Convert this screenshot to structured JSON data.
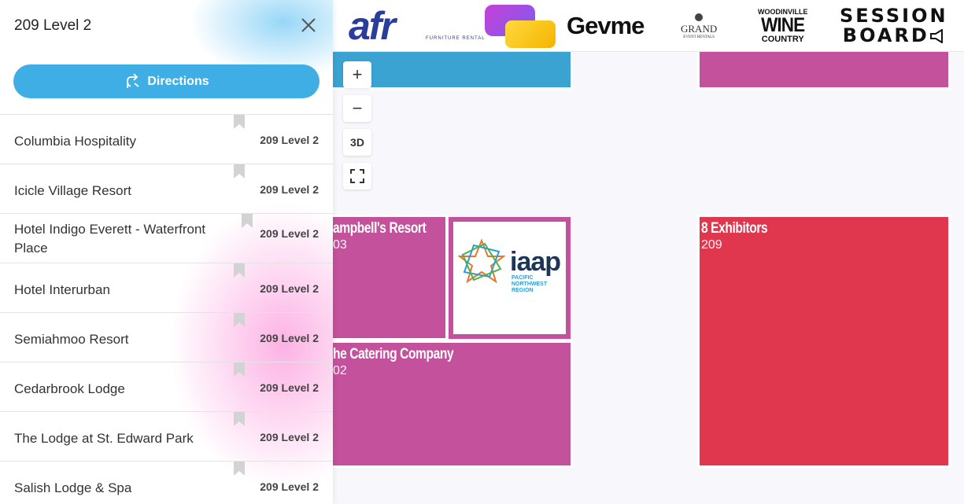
{
  "panel": {
    "title": "209 Level 2",
    "directions_label": "Directions",
    "items": [
      {
        "name": "Columbia Hospitality",
        "location": "209 Level 2"
      },
      {
        "name": "Icicle Village Resort",
        "location": "209 Level 2"
      },
      {
        "name": "Hotel Indigo Everett - Waterfront Place",
        "location": "209 Level 2"
      },
      {
        "name": "Hotel Interurban",
        "location": "209 Level 2"
      },
      {
        "name": "Semiahmoo Resort",
        "location": "209 Level 2"
      },
      {
        "name": "Cedarbrook Lodge",
        "location": "209 Level 2"
      },
      {
        "name": "The Lodge at St. Edward Park",
        "location": "209 Level 2"
      },
      {
        "name": "Salish Lodge & Spa",
        "location": "209 Level 2"
      }
    ]
  },
  "map": {
    "controls": {
      "zoom_in": "+",
      "zoom_out": "−",
      "view_3d": "3D",
      "fullscreen": "⛶"
    },
    "booths": [
      {
        "name": "ampbell's Resort",
        "number": "03",
        "color": "#c4519b"
      },
      {
        "name": "he Catering Company",
        "number": "02",
        "color": "#c4519b"
      },
      {
        "name": "8 Exhibitors",
        "number": "209",
        "color": "#e0374f"
      },
      {
        "name": "",
        "number": "",
        "color": "#3aa3d1"
      },
      {
        "name": "",
        "number": "",
        "color": "#c4519b"
      }
    ],
    "iaap_logo": {
      "text": "iaap",
      "subtitle": "PACIFIC NORTHWEST REGION"
    }
  },
  "sponsors": {
    "afr": {
      "text": "afr",
      "sub": "FURNITURE RENTAL"
    },
    "gevme": "Gevme",
    "grand": {
      "text": "GRAND",
      "sub": "EVENT RENTALS"
    },
    "wine": {
      "line1": "WOODINVILLE",
      "line2": "WINE",
      "line3": "COUNTRY"
    },
    "session": {
      "line1": "SESSION",
      "line2": "BOARD"
    }
  },
  "colors": {
    "accent": "#3eaee5",
    "magenta": "#c4519b",
    "red": "#e0374f",
    "blue": "#3aa3d1"
  }
}
